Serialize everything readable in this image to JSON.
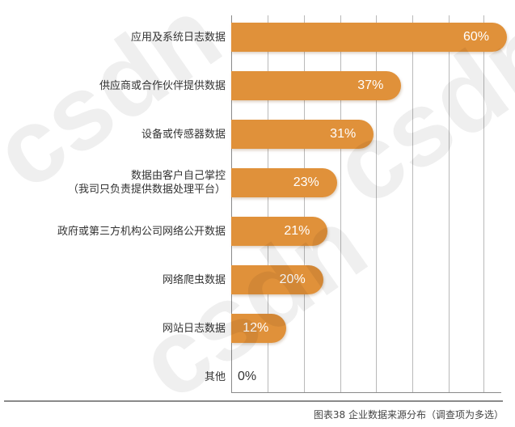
{
  "chart_data": {
    "type": "bar",
    "orientation": "horizontal",
    "title": "图表38 企业数据来源分布（调查项为多选）",
    "xlabel": "",
    "ylabel": "",
    "xlim": [
      0,
      60
    ],
    "grid": true,
    "legend": null,
    "categories": [
      "应用及系统日志数据",
      "供应商或合作伙伴提供数据",
      "设备或传感器数据",
      "数据由客户自己掌控（我司只负责提供数据处理平台）",
      "政府或第三方机构公司网络公开数据",
      "网络爬虫数据",
      "网站日志数据",
      "其他"
    ],
    "values": [
      60,
      37,
      31,
      23,
      21,
      20,
      12,
      0
    ],
    "unit": "%"
  },
  "rows": [
    {
      "label_lines": [
        "应用及系统日志数据"
      ],
      "value": 60,
      "value_label": "60%"
    },
    {
      "label_lines": [
        "供应商或合作伙伴提供数据"
      ],
      "value": 37,
      "value_label": "37%"
    },
    {
      "label_lines": [
        "设备或传感器数据"
      ],
      "value": 31,
      "value_label": "31%"
    },
    {
      "label_lines": [
        "数据由客户自己掌控",
        "（我司只负责提供数据处理平台）"
      ],
      "value": 23,
      "value_label": "23%"
    },
    {
      "label_lines": [
        "政府或第三方机构公司网络公开数据"
      ],
      "value": 21,
      "value_label": "21%"
    },
    {
      "label_lines": [
        "网络爬虫数据"
      ],
      "value": 20,
      "value_label": "20%"
    },
    {
      "label_lines": [
        "网站日志数据"
      ],
      "value": 12,
      "value_label": "12%"
    },
    {
      "label_lines": [
        "其他"
      ],
      "value": 0,
      "value_label": "0%"
    }
  ],
  "caption": "图表38 企业数据来源分布（调查项为多选）",
  "colors": {
    "bar": "#E0913A",
    "bar_text": "#FFFFFF",
    "gridline": "#B9B9B9",
    "axis": "#8A8A8A",
    "label_text": "#333333"
  },
  "watermark": "csdn"
}
